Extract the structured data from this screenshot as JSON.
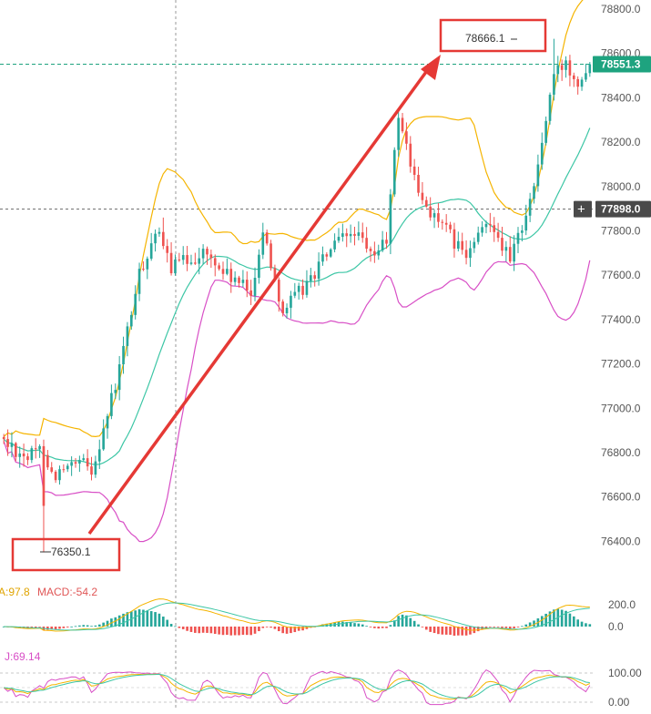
{
  "colors": {
    "up": "#26a69a",
    "down": "#ef5350",
    "bb_upper": "#f5b400",
    "bb_middle": "#3cc6a5",
    "bb_lower": "#d84fc6",
    "annotation": "#e53935",
    "axis_text": "#555555",
    "price_tag_bg": "#1ea37f",
    "crosshair_tag_bg": "#4a4a4a",
    "price_line": "#1ea37f",
    "macd_dif": "#f5b400",
    "macd_dea": "#3cc6a5",
    "kdj_k": "#f5b400",
    "kdj_d": "#3cc6a5",
    "kdj_j": "#d84fc6"
  },
  "chart_data": [
    {
      "type": "candlestick",
      "indicator": "Bollinger Bands",
      "y_ticks": [
        "78800.0",
        "78600.0",
        "78400.0",
        "78200.0",
        "78000.0",
        "77800.0",
        "77600.0",
        "77400.0",
        "77200.0",
        "77000.0",
        "76800.0",
        "76600.0",
        "76400.0"
      ],
      "ylim": [
        76200,
        78880
      ],
      "candles_approx": {
        "count": 148,
        "low_point": 76350.1,
        "high_point": 78666.1,
        "last_price": 78551.3,
        "keypoints_index_close": [
          [
            0,
            76850
          ],
          [
            6,
            76780
          ],
          [
            10,
            76820
          ],
          [
            12,
            76700
          ],
          [
            20,
            76750
          ],
          [
            22,
            76720
          ],
          [
            28,
            77100
          ],
          [
            34,
            77600
          ],
          [
            38,
            77800
          ],
          [
            42,
            77640
          ],
          [
            50,
            77700
          ],
          [
            56,
            77600
          ],
          [
            62,
            77520
          ],
          [
            65,
            77800
          ],
          [
            70,
            77440
          ],
          [
            76,
            77560
          ],
          [
            82,
            77720
          ],
          [
            88,
            77800
          ],
          [
            92,
            77680
          ],
          [
            96,
            77760
          ],
          [
            99,
            78330
          ],
          [
            104,
            77960
          ],
          [
            110,
            77820
          ],
          [
            116,
            77680
          ],
          [
            122,
            77860
          ],
          [
            127,
            77660
          ],
          [
            133,
            78000
          ],
          [
            138,
            78500
          ],
          [
            141,
            78560
          ],
          [
            144,
            78480
          ],
          [
            147,
            78551
          ]
        ]
      },
      "annotations": {
        "low_label": "76350.1",
        "high_label": "78666.1",
        "current_price_tag": "78551.3",
        "crosshair_price_tag": "77898.0",
        "crosshair_value": 77898.0
      }
    },
    {
      "type": "bar",
      "indicator": "MACD",
      "legend_text": [
        "A:97.8",
        "MACD:-54.2"
      ],
      "y_ticks": [
        "200.0",
        "0.0"
      ],
      "ylim": [
        -140,
        260
      ]
    },
    {
      "type": "line",
      "indicator": "KDJ",
      "legend_text": [
        "J:69.14"
      ],
      "y_ticks": [
        "100.00",
        "0.00"
      ],
      "ylim": [
        -10,
        115
      ]
    }
  ]
}
